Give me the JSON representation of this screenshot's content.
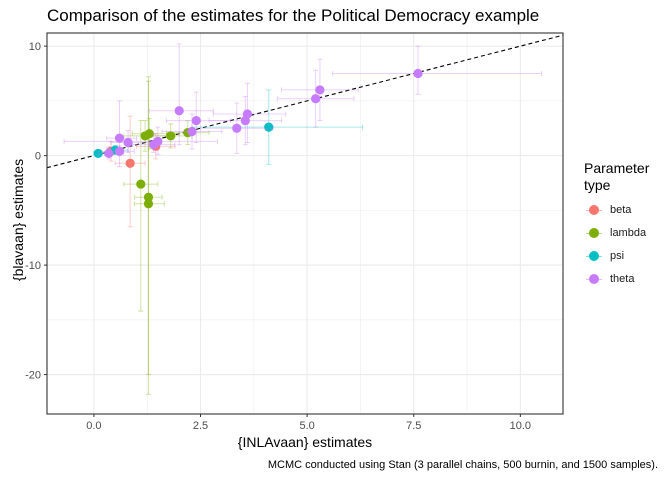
{
  "chart_data": {
    "type": "scatter",
    "title": "Comparison of the estimates for the Political Democracy example",
    "xlabel": "{INLAvaan} estimates",
    "ylabel": "{blavaan} estimates",
    "caption": "MCMC conducted using Stan (3 parallel chains, 500 burnin, and 1500 samples).",
    "xlim": [
      -1.1,
      11.0
    ],
    "ylim": [
      -23.6,
      11.2
    ],
    "x_ticks": [
      0.0,
      2.5,
      5.0,
      7.5,
      10.0
    ],
    "x_tick_labels": [
      "0.0",
      "2.5",
      "5.0",
      "7.5",
      "10.0"
    ],
    "y_ticks": [
      -20,
      -10,
      0,
      10
    ],
    "y_tick_labels": [
      "-20",
      "-10",
      "0",
      "10"
    ],
    "grid": true,
    "reference_line": {
      "slope": 1,
      "intercept": 0,
      "style": "dashed",
      "color": "#000000"
    },
    "legend": {
      "title": "Parameter type",
      "position": "right",
      "entries": [
        {
          "label": "beta",
          "color": "#F8766D"
        },
        {
          "label": "lambda",
          "color": "#7CAE00"
        },
        {
          "label": "psi",
          "color": "#00BFC4"
        },
        {
          "label": "theta",
          "color": "#C77CFF"
        }
      ]
    },
    "series": [
      {
        "name": "beta",
        "color": "#F8766D",
        "points": [
          {
            "x": 0.85,
            "y": -0.7,
            "xlo": 0.5,
            "xhi": 1.2,
            "ylo": -6.5,
            "yhi": 3.6
          },
          {
            "x": 1.45,
            "y": 0.85,
            "xlo": 1.0,
            "xhi": 1.9,
            "ylo": -0.3,
            "yhi": 2.0
          },
          {
            "x": 0.4,
            "y": 0.4,
            "xlo": 0.15,
            "xhi": 0.7,
            "ylo": -0.5,
            "yhi": 1.3
          }
        ]
      },
      {
        "name": "lambda",
        "color": "#7CAE00",
        "points": [
          {
            "x": 1.1,
            "y": -2.6,
            "xlo": 0.7,
            "xhi": 1.5,
            "ylo": -14.2,
            "yhi": 3.2
          },
          {
            "x": 1.28,
            "y": -3.8,
            "xlo": 0.95,
            "xhi": 1.6,
            "ylo": -20.0,
            "yhi": 7.2
          },
          {
            "x": 1.28,
            "y": -4.4,
            "xlo": 0.95,
            "xhi": 1.65,
            "ylo": -21.8,
            "yhi": 6.8
          },
          {
            "x": 1.2,
            "y": 1.8,
            "xlo": 0.7,
            "xhi": 1.9,
            "ylo": 0.4,
            "yhi": 3.2
          },
          {
            "x": 1.3,
            "y": 2.0,
            "xlo": 0.9,
            "xhi": 2.0,
            "ylo": 0.6,
            "yhi": 3.4
          },
          {
            "x": 1.8,
            "y": 1.8,
            "xlo": 1.3,
            "xhi": 2.3,
            "ylo": 0.7,
            "yhi": 2.9
          },
          {
            "x": 2.2,
            "y": 2.1,
            "xlo": 1.7,
            "xhi": 2.7,
            "ylo": 1.0,
            "yhi": 3.2
          }
        ]
      },
      {
        "name": "psi",
        "color": "#00BFC4",
        "points": [
          {
            "x": 0.1,
            "y": 0.2,
            "xlo": 0.0,
            "xhi": 0.25,
            "ylo": 0.0,
            "yhi": 0.5
          },
          {
            "x": 0.5,
            "y": 0.5,
            "xlo": 0.3,
            "xhi": 0.8,
            "ylo": 0.2,
            "yhi": 0.9
          },
          {
            "x": 4.1,
            "y": 2.6,
            "xlo": 2.3,
            "xhi": 6.3,
            "ylo": -0.8,
            "yhi": 6.0
          }
        ]
      },
      {
        "name": "theta",
        "color": "#C77CFF",
        "points": [
          {
            "x": 0.6,
            "y": 1.6,
            "xlo": 0.3,
            "xhi": 1.0,
            "ylo": -1.0,
            "yhi": 5.0
          },
          {
            "x": 0.8,
            "y": 1.2,
            "xlo": 0.4,
            "xhi": 1.3,
            "ylo": 0.3,
            "yhi": 2.3
          },
          {
            "x": 0.35,
            "y": 0.2,
            "xlo": 0.1,
            "xhi": 0.7,
            "ylo": -0.3,
            "yhi": 0.8
          },
          {
            "x": 0.6,
            "y": 0.4,
            "xlo": 0.3,
            "xhi": 0.95,
            "ylo": 0.0,
            "yhi": 0.9
          },
          {
            "x": 1.4,
            "y": 1.0,
            "xlo": 0.9,
            "xhi": 1.9,
            "ylo": 0.3,
            "yhi": 2.0
          },
          {
            "x": 1.5,
            "y": 1.3,
            "xlo": -0.7,
            "xhi": 2.9,
            "ylo": 0.1,
            "yhi": 2.6
          },
          {
            "x": 2.0,
            "y": 4.1,
            "xlo": 1.3,
            "xhi": 2.8,
            "ylo": 1.0,
            "yhi": 10.2
          },
          {
            "x": 2.4,
            "y": 3.2,
            "xlo": 1.7,
            "xhi": 3.2,
            "ylo": 1.2,
            "yhi": 5.8
          },
          {
            "x": 2.3,
            "y": 2.2,
            "xlo": 1.6,
            "xhi": 3.0,
            "ylo": 0.6,
            "yhi": 3.8
          },
          {
            "x": 3.35,
            "y": 2.5,
            "xlo": 2.5,
            "xhi": 4.2,
            "ylo": 0.2,
            "yhi": 4.8
          },
          {
            "x": 3.55,
            "y": 3.2,
            "xlo": 2.7,
            "xhi": 4.4,
            "ylo": 1.0,
            "yhi": 5.4
          },
          {
            "x": 3.6,
            "y": 3.8,
            "xlo": 2.8,
            "xhi": 4.5,
            "ylo": 1.2,
            "yhi": 6.6
          },
          {
            "x": 5.2,
            "y": 5.2,
            "xlo": 4.3,
            "xhi": 6.1,
            "ylo": 2.6,
            "yhi": 7.8
          },
          {
            "x": 5.3,
            "y": 6.0,
            "xlo": 4.4,
            "xhi": 6.2,
            "ylo": 3.2,
            "yhi": 8.8
          },
          {
            "x": 7.6,
            "y": 7.5,
            "xlo": 5.6,
            "xhi": 10.5,
            "ylo": 5.6,
            "yhi": 10.0
          }
        ]
      }
    ]
  }
}
